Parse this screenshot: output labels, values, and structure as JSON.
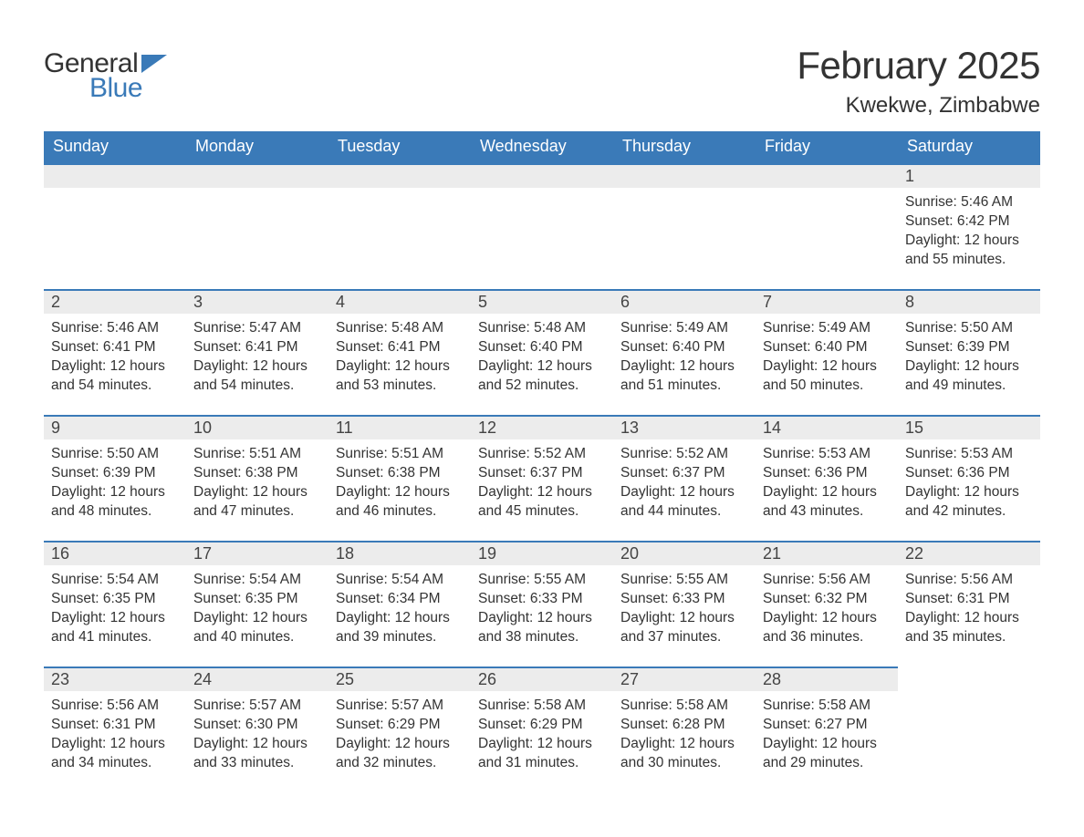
{
  "logo": {
    "word1": "General",
    "word2": "Blue",
    "flag_color": "#3a7ab8"
  },
  "title": "February 2025",
  "location": "Kwekwe, Zimbabwe",
  "colors": {
    "header_bg": "#3a7ab8",
    "header_text": "#ffffff",
    "daybar_bg": "#ececec",
    "daybar_border": "#3a7ab8",
    "body_text": "#333333",
    "page_bg": "#ffffff"
  },
  "fonts": {
    "title_size_pt": 42,
    "location_size_pt": 24,
    "header_size_pt": 18,
    "daynum_size_pt": 18,
    "body_size_pt": 15.5
  },
  "weekdays": [
    "Sunday",
    "Monday",
    "Tuesday",
    "Wednesday",
    "Thursday",
    "Friday",
    "Saturday"
  ],
  "weeks": [
    [
      {
        "day": null
      },
      {
        "day": null
      },
      {
        "day": null
      },
      {
        "day": null
      },
      {
        "day": null
      },
      {
        "day": null
      },
      {
        "day": 1,
        "sunrise": "5:46 AM",
        "sunset": "6:42 PM",
        "daylight": "12 hours and 55 minutes."
      }
    ],
    [
      {
        "day": 2,
        "sunrise": "5:46 AM",
        "sunset": "6:41 PM",
        "daylight": "12 hours and 54 minutes."
      },
      {
        "day": 3,
        "sunrise": "5:47 AM",
        "sunset": "6:41 PM",
        "daylight": "12 hours and 54 minutes."
      },
      {
        "day": 4,
        "sunrise": "5:48 AM",
        "sunset": "6:41 PM",
        "daylight": "12 hours and 53 minutes."
      },
      {
        "day": 5,
        "sunrise": "5:48 AM",
        "sunset": "6:40 PM",
        "daylight": "12 hours and 52 minutes."
      },
      {
        "day": 6,
        "sunrise": "5:49 AM",
        "sunset": "6:40 PM",
        "daylight": "12 hours and 51 minutes."
      },
      {
        "day": 7,
        "sunrise": "5:49 AM",
        "sunset": "6:40 PM",
        "daylight": "12 hours and 50 minutes."
      },
      {
        "day": 8,
        "sunrise": "5:50 AM",
        "sunset": "6:39 PM",
        "daylight": "12 hours and 49 minutes."
      }
    ],
    [
      {
        "day": 9,
        "sunrise": "5:50 AM",
        "sunset": "6:39 PM",
        "daylight": "12 hours and 48 minutes."
      },
      {
        "day": 10,
        "sunrise": "5:51 AM",
        "sunset": "6:38 PM",
        "daylight": "12 hours and 47 minutes."
      },
      {
        "day": 11,
        "sunrise": "5:51 AM",
        "sunset": "6:38 PM",
        "daylight": "12 hours and 46 minutes."
      },
      {
        "day": 12,
        "sunrise": "5:52 AM",
        "sunset": "6:37 PM",
        "daylight": "12 hours and 45 minutes."
      },
      {
        "day": 13,
        "sunrise": "5:52 AM",
        "sunset": "6:37 PM",
        "daylight": "12 hours and 44 minutes."
      },
      {
        "day": 14,
        "sunrise": "5:53 AM",
        "sunset": "6:36 PM",
        "daylight": "12 hours and 43 minutes."
      },
      {
        "day": 15,
        "sunrise": "5:53 AM",
        "sunset": "6:36 PM",
        "daylight": "12 hours and 42 minutes."
      }
    ],
    [
      {
        "day": 16,
        "sunrise": "5:54 AM",
        "sunset": "6:35 PM",
        "daylight": "12 hours and 41 minutes."
      },
      {
        "day": 17,
        "sunrise": "5:54 AM",
        "sunset": "6:35 PM",
        "daylight": "12 hours and 40 minutes."
      },
      {
        "day": 18,
        "sunrise": "5:54 AM",
        "sunset": "6:34 PM",
        "daylight": "12 hours and 39 minutes."
      },
      {
        "day": 19,
        "sunrise": "5:55 AM",
        "sunset": "6:33 PM",
        "daylight": "12 hours and 38 minutes."
      },
      {
        "day": 20,
        "sunrise": "5:55 AM",
        "sunset": "6:33 PM",
        "daylight": "12 hours and 37 minutes."
      },
      {
        "day": 21,
        "sunrise": "5:56 AM",
        "sunset": "6:32 PM",
        "daylight": "12 hours and 36 minutes."
      },
      {
        "day": 22,
        "sunrise": "5:56 AM",
        "sunset": "6:31 PM",
        "daylight": "12 hours and 35 minutes."
      }
    ],
    [
      {
        "day": 23,
        "sunrise": "5:56 AM",
        "sunset": "6:31 PM",
        "daylight": "12 hours and 34 minutes."
      },
      {
        "day": 24,
        "sunrise": "5:57 AM",
        "sunset": "6:30 PM",
        "daylight": "12 hours and 33 minutes."
      },
      {
        "day": 25,
        "sunrise": "5:57 AM",
        "sunset": "6:29 PM",
        "daylight": "12 hours and 32 minutes."
      },
      {
        "day": 26,
        "sunrise": "5:58 AM",
        "sunset": "6:29 PM",
        "daylight": "12 hours and 31 minutes."
      },
      {
        "day": 27,
        "sunrise": "5:58 AM",
        "sunset": "6:28 PM",
        "daylight": "12 hours and 30 minutes."
      },
      {
        "day": 28,
        "sunrise": "5:58 AM",
        "sunset": "6:27 PM",
        "daylight": "12 hours and 29 minutes."
      },
      {
        "day": null
      }
    ]
  ],
  "labels": {
    "sunrise": "Sunrise: ",
    "sunset": "Sunset: ",
    "daylight": "Daylight: "
  }
}
